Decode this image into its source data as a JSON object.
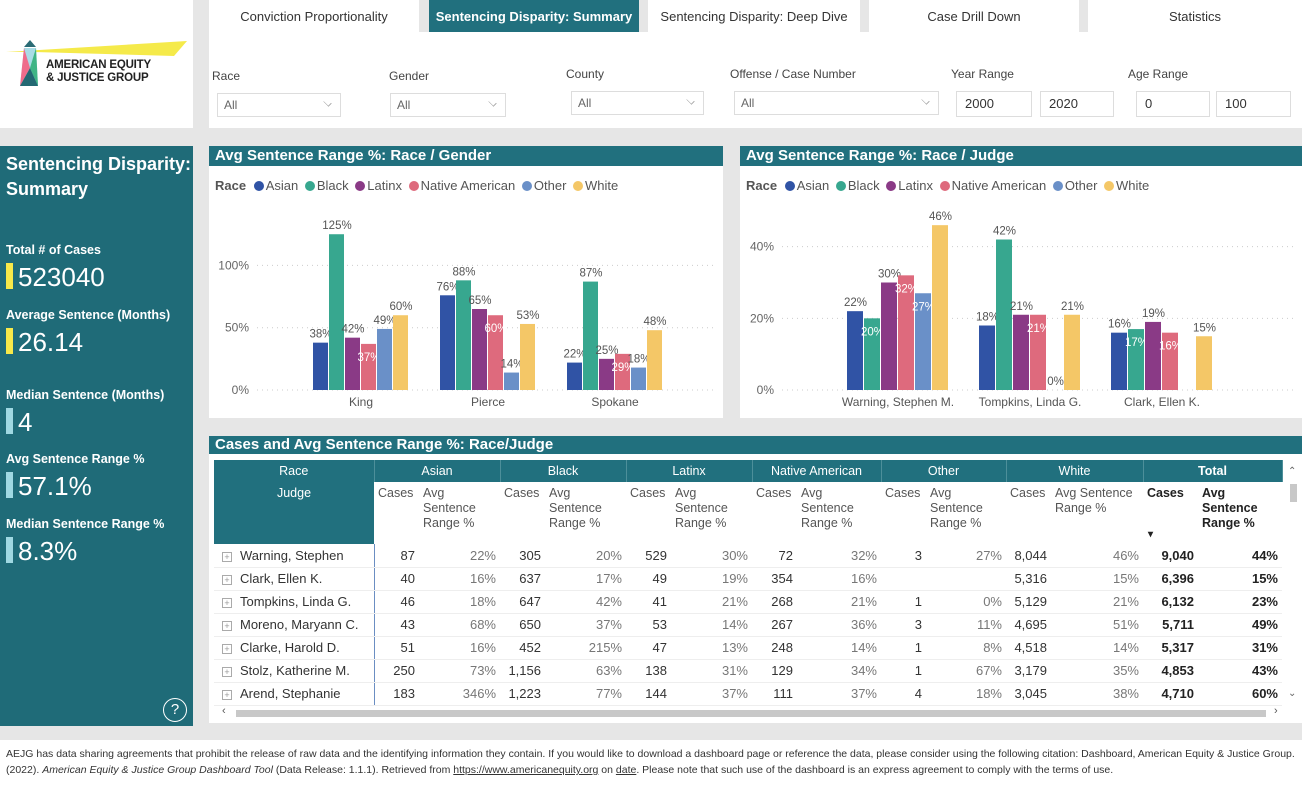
{
  "logo": {
    "line1": "AMERICAN EQUITY",
    "line2": "& JUSTICE GROUP"
  },
  "tabs": [
    {
      "label": "Conviction Proportionality",
      "active": false
    },
    {
      "label": "Sentencing Disparity: Summary",
      "active": true
    },
    {
      "label": "Sentencing Disparity: Deep Dive",
      "active": false
    },
    {
      "label": "Case Drill Down",
      "active": false
    },
    {
      "label": "Statistics",
      "active": false
    }
  ],
  "filters": {
    "race": {
      "label": "Race",
      "value": "All"
    },
    "gender": {
      "label": "Gender",
      "value": "All"
    },
    "county": {
      "label": "County",
      "value": "All"
    },
    "offense": {
      "label": "Offense / Case Number",
      "value": "All"
    },
    "year_range": {
      "label": "Year Range",
      "from": "2000",
      "to": "2020"
    },
    "age_range": {
      "label": "Age Range",
      "from": "0",
      "to": "100"
    }
  },
  "sidebar": {
    "title": "Sentencing Disparity: Summary",
    "kpis": [
      {
        "label": "Total # of Cases",
        "value": "523040",
        "bar_color": "#f7e94a"
      },
      {
        "label": "Average Sentence (Months)",
        "value": "26.14",
        "bar_color": "#f7e94a"
      },
      {
        "label": "Median Sentence (Months)",
        "value": "4",
        "bar_color": "#9fd8e2"
      },
      {
        "label": "Avg Sentence Range %",
        "value": "57.1%",
        "bar_color": "#9fd8e2"
      },
      {
        "label": "Median Sentence Range %",
        "value": "8.3%",
        "bar_color": "#9fd8e2"
      }
    ],
    "help_icon": "?"
  },
  "legend": {
    "title": "Race",
    "items": [
      {
        "name": "Asian",
        "color": "#3053a5"
      },
      {
        "name": "Black",
        "color": "#37a78f"
      },
      {
        "name": "Latinx",
        "color": "#8a3a86"
      },
      {
        "name": "Native American",
        "color": "#de6a7d"
      },
      {
        "name": "Other",
        "color": "#6a90c8"
      },
      {
        "name": "White",
        "color": "#f4c767"
      }
    ]
  },
  "chart_data": [
    {
      "type": "bar",
      "title": "Avg Sentence Range %: Race / Gender",
      "legend_title": "Race",
      "legend_position": "top-left",
      "categories": [
        "King",
        "Pierce",
        "Spokane"
      ],
      "ylim": [
        0,
        130
      ],
      "yticks": [
        0,
        50,
        100
      ],
      "ytick_labels": [
        "0%",
        "50%",
        "100%"
      ],
      "grid": true,
      "series": [
        {
          "name": "Asian",
          "values": [
            38,
            76,
            22
          ]
        },
        {
          "name": "Black",
          "values": [
            125,
            88,
            87
          ]
        },
        {
          "name": "Latinx",
          "values": [
            42,
            65,
            25
          ]
        },
        {
          "name": "Native American",
          "values": [
            37,
            60,
            29
          ]
        },
        {
          "name": "Other",
          "values": [
            49,
            14,
            18
          ]
        },
        {
          "name": "White",
          "values": [
            60,
            53,
            48
          ]
        }
      ]
    },
    {
      "type": "bar",
      "title": "Avg Sentence Range %: Race / Judge",
      "legend_title": "Race",
      "legend_position": "top-left",
      "categories": [
        "Warning, Stephen M.",
        "Tompkins, Linda G.",
        "Clark, Ellen K."
      ],
      "ylim": [
        0,
        48
      ],
      "yticks": [
        0,
        20,
        40
      ],
      "ytick_labels": [
        "0%",
        "20%",
        "40%"
      ],
      "grid": true,
      "series": [
        {
          "name": "Asian",
          "values": [
            22,
            18,
            16
          ]
        },
        {
          "name": "Black",
          "values": [
            20,
            42,
            17
          ]
        },
        {
          "name": "Latinx",
          "values": [
            30,
            21,
            19
          ]
        },
        {
          "name": "Native American",
          "values": [
            32,
            21,
            16
          ]
        },
        {
          "name": "Other",
          "values": [
            27,
            0,
            null
          ]
        },
        {
          "name": "White",
          "values": [
            46,
            21,
            15
          ]
        }
      ]
    }
  ],
  "table": {
    "title": "Cases and Avg Sentence Range %: Race/Judge",
    "row_header": "Race",
    "judge_header": "Judge",
    "groups": [
      "Asian",
      "Black",
      "Latinx",
      "Native American",
      "Other",
      "White",
      "Total"
    ],
    "sub_cases": "Cases",
    "sub_avg": "Avg Sentence Range %",
    "rows": [
      {
        "judge": "Warning, Stephen",
        "cells": [
          "87",
          "22%",
          "305",
          "20%",
          "529",
          "30%",
          "72",
          "32%",
          "3",
          "27%",
          "8,044",
          "46%",
          "9,040",
          "44%"
        ]
      },
      {
        "judge": "Clark, Ellen K.",
        "cells": [
          "40",
          "16%",
          "637",
          "17%",
          "49",
          "19%",
          "354",
          "16%",
          "",
          "",
          "5,316",
          "15%",
          "6,396",
          "15%"
        ]
      },
      {
        "judge": "Tompkins, Linda G.",
        "cells": [
          "46",
          "18%",
          "647",
          "42%",
          "41",
          "21%",
          "268",
          "21%",
          "1",
          "0%",
          "5,129",
          "21%",
          "6,132",
          "23%"
        ]
      },
      {
        "judge": "Moreno, Maryann C.",
        "cells": [
          "43",
          "68%",
          "650",
          "37%",
          "53",
          "14%",
          "267",
          "36%",
          "3",
          "11%",
          "4,695",
          "51%",
          "5,711",
          "49%"
        ]
      },
      {
        "judge": "Clarke, Harold D.",
        "cells": [
          "51",
          "16%",
          "452",
          "215%",
          "47",
          "13%",
          "248",
          "14%",
          "1",
          "8%",
          "4,518",
          "14%",
          "5,317",
          "31%"
        ]
      },
      {
        "judge": "Stolz, Katherine M.",
        "cells": [
          "250",
          "73%",
          "1,156",
          "63%",
          "138",
          "31%",
          "129",
          "34%",
          "1",
          "67%",
          "3,179",
          "35%",
          "4,853",
          "43%"
        ]
      },
      {
        "judge": "Arend, Stephanie",
        "cells": [
          "183",
          "346%",
          "1,223",
          "77%",
          "144",
          "37%",
          "111",
          "37%",
          "4",
          "18%",
          "3,045",
          "38%",
          "4,710",
          "60%"
        ]
      }
    ]
  },
  "footer": {
    "abbr": "AEJG",
    "text1": " has data sharing agreements that prohibit the release of raw data and the identifying information they contain. If you would like to download a dashboard page or reference the data, please consider using the following citation: Dashboard, American Equity & Justice Group. (2022). ",
    "title_italic": "American Equity & Justice Group Dashboard Tool",
    "text2": " (Data Release: 1.1.1). Retrieved from ",
    "link": "https://www.americanequity.org",
    "text3": " on ",
    "date_link": "date",
    "text4": ". Please note that such use of the dashboard is an express agreement to comply with the terms of use."
  }
}
